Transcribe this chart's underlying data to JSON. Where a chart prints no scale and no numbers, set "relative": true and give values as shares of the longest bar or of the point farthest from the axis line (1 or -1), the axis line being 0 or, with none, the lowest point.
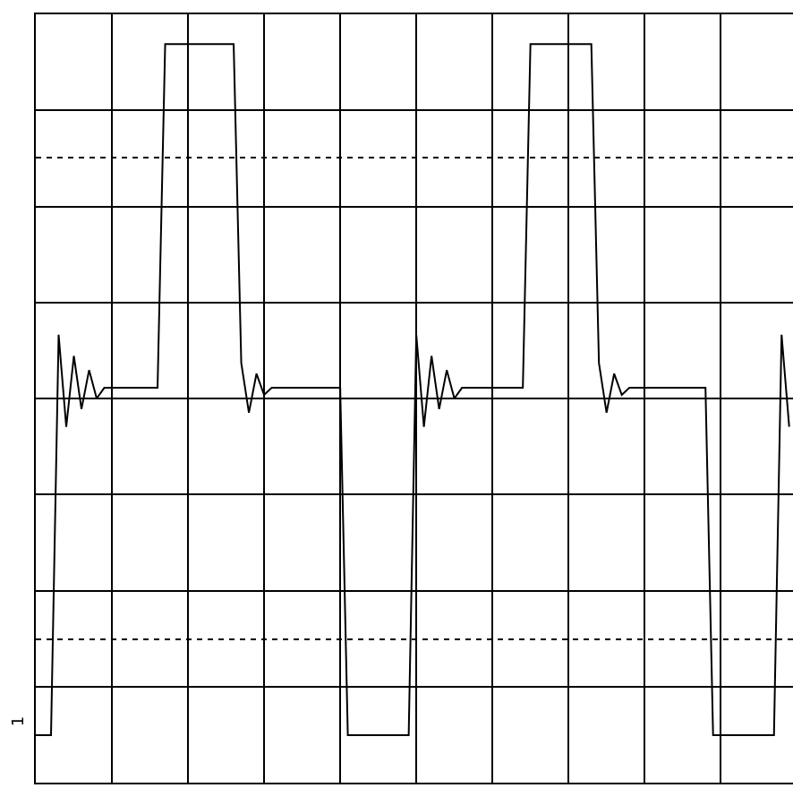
{
  "chart_data": {
    "type": "line",
    "relative": true,
    "grid": true,
    "marker": "none",
    "line_style": "solid",
    "categories": [
      null,
      null,
      null,
      null,
      null,
      null,
      null,
      null,
      null,
      null,
      null,
      null,
      null,
      null,
      null,
      null,
      null,
      null,
      null,
      null,
      null,
      null,
      null,
      null,
      null,
      null,
      null,
      null,
      null,
      null,
      null,
      null,
      null,
      null,
      null,
      null,
      null,
      null,
      null,
      null,
      null,
      null,
      null,
      null,
      null,
      null,
      null,
      null,
      null,
      null,
      null,
      null,
      null,
      null,
      null,
      null,
      null,
      null,
      null,
      null,
      null,
      null,
      null,
      null,
      null,
      null,
      null,
      null,
      null,
      null,
      null,
      null,
      null,
      null,
      null,
      null,
      null,
      null,
      null,
      null,
      null,
      null,
      null,
      null,
      null,
      null,
      null,
      null,
      null,
      null,
      null,
      null,
      null,
      null,
      null,
      null,
      null,
      null,
      null,
      null
    ],
    "series": [
      {
        "color": "#000000",
        "values": [
          -0.95,
          -0.95,
          -0.95,
          0.18,
          -0.08,
          0.12,
          -0.03,
          0.08,
          0.0,
          0.03,
          0.03,
          0.03,
          0.03,
          0.03,
          0.03,
          0.03,
          0.03,
          1,
          1,
          1,
          1,
          1,
          1,
          1,
          1,
          1,
          1,
          0.1,
          -0.04,
          0.07,
          0.01,
          0.03,
          0.03,
          0.03,
          0.03,
          0.03,
          0.03,
          0.03,
          0.03,
          0.03,
          0.03,
          -0.95,
          -0.95,
          -0.95,
          -0.95,
          -0.95,
          -0.95,
          -0.95,
          -0.95,
          -0.95,
          0.18,
          -0.08,
          0.12,
          -0.03,
          0.08,
          0.0,
          0.03,
          0.03,
          0.03,
          0.03,
          0.03,
          0.03,
          0.03,
          0.03,
          0.03,
          1,
          1,
          1,
          1,
          1,
          1,
          1,
          1,
          1,
          0.1,
          -0.04,
          0.07,
          0.01,
          0.03,
          0.03,
          0.03,
          0.03,
          0.03,
          0.03,
          0.03,
          0.03,
          0.03,
          0.03,
          0.03,
          -0.95,
          -0.95,
          -0.95,
          -0.95,
          -0.95,
          -0.95,
          -0.95,
          -0.95,
          -0.95,
          0.18,
          -0.08
        ]
      }
    ],
    "ref_lines": [
      {
        "axis": "y",
        "value": 0.68,
        "line_style": "dotted",
        "color": "#000000"
      },
      {
        "axis": "y",
        "value": -0.68,
        "line_style": "dotted",
        "color": "#000000"
      }
    ],
    "annotations": [
      "1"
    ]
  }
}
